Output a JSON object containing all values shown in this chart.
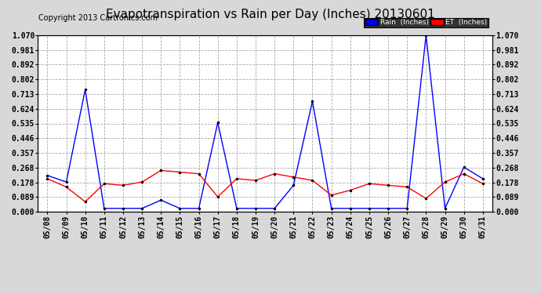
{
  "title": "Evapotranspiration vs Rain per Day (Inches) 20130601",
  "copyright": "Copyright 2013 Cartronics.com",
  "dates": [
    "05/08",
    "05/09",
    "05/10",
    "05/11",
    "05/12",
    "05/13",
    "05/14",
    "05/15",
    "05/16",
    "05/17",
    "05/18",
    "05/19",
    "05/20",
    "05/21",
    "05/22",
    "05/23",
    "05/24",
    "05/25",
    "05/26",
    "05/27",
    "05/28",
    "05/29",
    "05/30",
    "05/31"
  ],
  "rain": [
    0.22,
    0.18,
    0.74,
    0.02,
    0.02,
    0.02,
    0.07,
    0.02,
    0.02,
    0.54,
    0.02,
    0.02,
    0.02,
    0.16,
    0.67,
    0.02,
    0.02,
    0.02,
    0.02,
    0.02,
    1.07,
    0.02,
    0.27,
    0.2
  ],
  "et": [
    0.2,
    0.15,
    0.06,
    0.17,
    0.16,
    0.18,
    0.25,
    0.24,
    0.23,
    0.09,
    0.2,
    0.19,
    0.23,
    0.21,
    0.19,
    0.1,
    0.13,
    0.17,
    0.16,
    0.15,
    0.08,
    0.18,
    0.23,
    0.17
  ],
  "rain_color": "#0000ff",
  "et_color": "#ff0000",
  "bg_color": "#d8d8d8",
  "plot_bg_color": "#ffffff",
  "grid_color": "#aaaaaa",
  "ylim": [
    0.0,
    1.07
  ],
  "yticks": [
    0.0,
    0.089,
    0.178,
    0.268,
    0.357,
    0.446,
    0.535,
    0.624,
    0.713,
    0.802,
    0.892,
    0.981,
    1.07
  ],
  "title_fontsize": 11,
  "copyright_fontsize": 7,
  "tick_fontsize": 7,
  "legend_rain_label": "Rain  (Inches)",
  "legend_et_label": "ET  (Inches)"
}
